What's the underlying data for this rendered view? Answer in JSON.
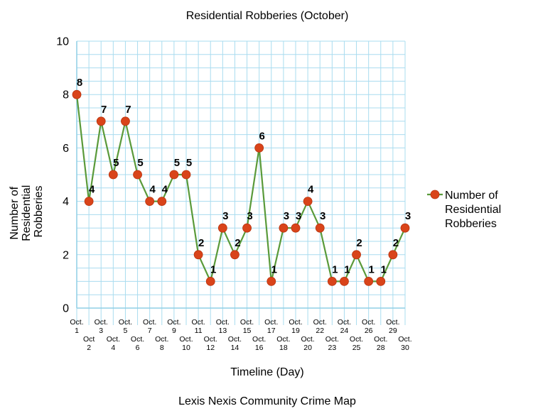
{
  "chart_data": {
    "type": "line",
    "title": "Residential Robberies (October)",
    "xlabel": "Timeline (Day)",
    "ylabel": "Number of Residential Robberies",
    "ylim": [
      0,
      10
    ],
    "yticks": [
      0,
      2,
      4,
      6,
      8,
      10
    ],
    "grid": true,
    "legend_position": "right",
    "categories": [
      "Oct. 1",
      "Oct 2",
      "Oct. 3",
      "Oct. 4",
      "Oct. 5",
      "Oct. 6",
      "Oct. 7",
      "Oct. 8",
      "Oct. 9",
      "Oct. 10",
      "Oct. 11",
      "Oct. 12",
      "Oct. 13",
      "Oct. 14",
      "Oct. 15",
      "Oct. 16",
      "Oct. 17",
      "Oct. 18",
      "Oct. 19",
      "Oct. 20",
      "Oct. 22",
      "Oct. 23",
      "Oct. 24",
      "Oct. 25",
      "Oct. 26",
      "Oct. 28",
      "Oct. 29",
      "Oct. 30"
    ],
    "series": [
      {
        "name": "Number of Residential Robberies",
        "line_color": "#5a9a3a",
        "marker_color": "#d9441a",
        "values": [
          8,
          4,
          7,
          5,
          7,
          5,
          4,
          4,
          5,
          5,
          2,
          1,
          3,
          2,
          3,
          6,
          1,
          3,
          3,
          4,
          3,
          1,
          1,
          2,
          1,
          1,
          2,
          3
        ]
      }
    ]
  },
  "footer": "Lexis Nexis Community Crime Map"
}
